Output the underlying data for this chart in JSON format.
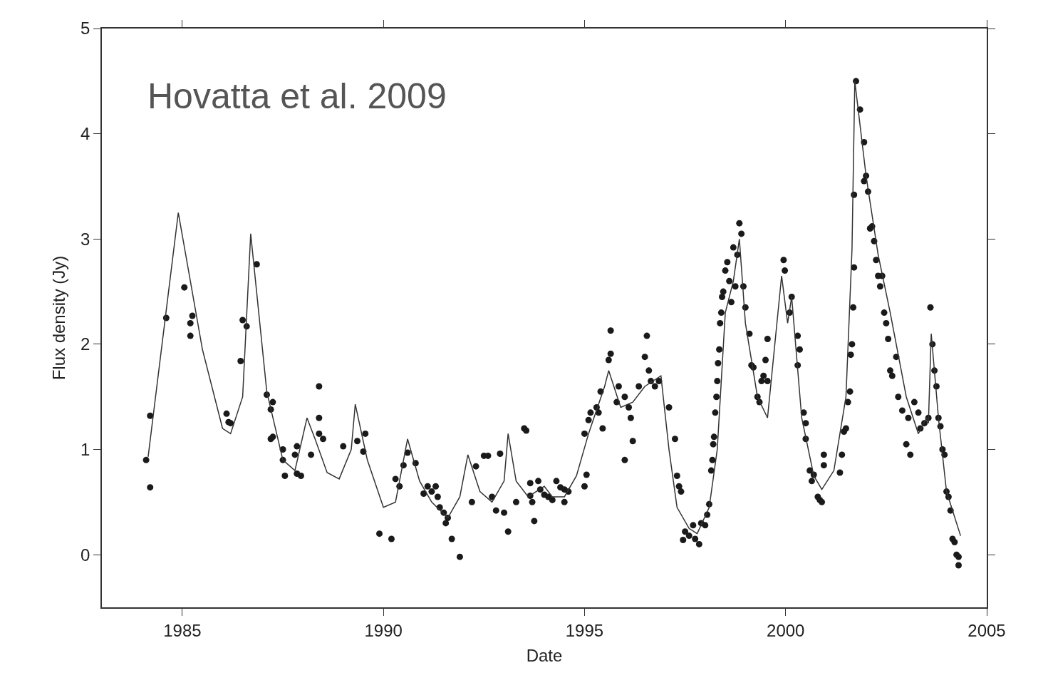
{
  "chart_data": {
    "type": "scatter",
    "xlabel": "Date",
    "ylabel": "Flux density (Jy)",
    "annotations": [
      "Hovatta et al. 2009"
    ],
    "xlim": [
      1983,
      2005
    ],
    "xticks": [
      1985,
      1990,
      1995,
      2000,
      2005
    ],
    "ylim": [
      -0.5,
      5
    ],
    "yticks": [
      0,
      1,
      2,
      3,
      4,
      5
    ],
    "marker": "circle",
    "series": [
      {
        "color": "#1a1a1a",
        "x": [
          1984.1,
          1984.2,
          1984.2,
          1984.6,
          1985.05,
          1985.2,
          1985.25,
          1985.2,
          1986.1,
          1986.15,
          1986.2,
          1986.45,
          1986.5,
          1986.6,
          1986.85,
          1987.1,
          1987.2,
          1987.25,
          1987.2,
          1987.25,
          1987.5,
          1987.5,
          1987.55,
          1987.8,
          1987.85,
          1987.85,
          1987.95,
          1988.2,
          1988.4,
          1988.4,
          1988.4,
          1988.5,
          1989.0,
          1989.35,
          1989.5,
          1989.55,
          1989.9,
          1990.2,
          1990.3,
          1990.4,
          1990.5,
          1990.6,
          1990.8,
          1991.0,
          1991.1,
          1991.2,
          1991.3,
          1991.35,
          1991.4,
          1991.5,
          1991.55,
          1991.6,
          1991.7,
          1991.9,
          1992.2,
          1992.3,
          1992.5,
          1992.6,
          1992.7,
          1992.8,
          1992.9,
          1993.0,
          1993.1,
          1993.3,
          1993.5,
          1993.55,
          1993.65,
          1993.65,
          1993.75,
          1993.7,
          1993.85,
          1993.9,
          1994.0,
          1994.1,
          1994.2,
          1994.3,
          1994.4,
          1994.5,
          1994.5,
          1994.6,
          1995.0,
          1995.05,
          1995.0,
          1995.1,
          1995.15,
          1995.3,
          1995.35,
          1995.4,
          1995.45,
          1995.6,
          1995.65,
          1995.65,
          1995.8,
          1995.85,
          1996.0,
          1996.0,
          1996.1,
          1996.15,
          1996.2,
          1996.35,
          1996.5,
          1996.55,
          1996.6,
          1996.65,
          1996.75,
          1996.85,
          1997.1,
          1997.25,
          1997.3,
          1997.35,
          1997.4,
          1997.45,
          1997.5,
          1997.6,
          1997.7,
          1997.75,
          1997.85,
          1997.9,
          1998.0,
          1998.05,
          1998.1,
          1998.15,
          1998.18,
          1998.2,
          1998.22,
          1998.25,
          1998.28,
          1998.3,
          1998.32,
          1998.35,
          1998.37,
          1998.4,
          1998.42,
          1998.45,
          1998.5,
          1998.55,
          1998.6,
          1998.65,
          1998.7,
          1998.75,
          1998.8,
          1998.85,
          1998.9,
          1998.95,
          1999.0,
          1999.1,
          1999.15,
          1999.2,
          1999.3,
          1999.35,
          1999.4,
          1999.45,
          1999.5,
          1999.55,
          1999.55,
          1999.95,
          1999.98,
          2000.1,
          2000.15,
          2000.3,
          2000.3,
          2000.35,
          2000.45,
          2000.5,
          2000.5,
          2000.6,
          2000.65,
          2000.7,
          2000.8,
          2000.85,
          2000.9,
          2000.95,
          2000.95,
          2001.35,
          2001.4,
          2001.45,
          2001.5,
          2001.55,
          2001.6,
          2001.62,
          2001.65,
          2001.68,
          2001.7,
          2001.7,
          2001.75,
          2001.85,
          2001.95,
          2001.95,
          2002.0,
          2002.05,
          2002.1,
          2002.15,
          2002.2,
          2002.25,
          2002.3,
          2002.35,
          2002.4,
          2002.45,
          2002.5,
          2002.55,
          2002.6,
          2002.65,
          2002.75,
          2002.8,
          2002.9,
          2003.0,
          2003.05,
          2003.1,
          2003.2,
          2003.3,
          2003.35,
          2003.45,
          2003.55,
          2003.6,
          2003.65,
          2003.7,
          2003.75,
          2003.8,
          2003.85,
          2003.9,
          2003.95,
          2004.0,
          2004.05,
          2004.1,
          2004.15,
          2004.2,
          2004.25,
          2004.3,
          2004.3
        ],
        "values": [
          0.9,
          1.32,
          0.64,
          2.25,
          2.54,
          2.2,
          2.27,
          2.08,
          1.34,
          1.26,
          1.25,
          1.84,
          2.23,
          2.17,
          2.76,
          1.52,
          1.38,
          1.45,
          1.1,
          1.12,
          1.0,
          0.9,
          0.75,
          0.95,
          1.03,
          0.77,
          0.75,
          0.95,
          1.6,
          1.3,
          1.15,
          1.1,
          1.03,
          1.08,
          0.98,
          1.15,
          0.2,
          0.15,
          0.72,
          0.65,
          0.85,
          0.97,
          0.87,
          0.58,
          0.65,
          0.6,
          0.65,
          0.55,
          0.45,
          0.4,
          0.3,
          0.35,
          0.15,
          -0.02,
          0.5,
          0.84,
          0.94,
          0.94,
          0.55,
          0.42,
          0.96,
          0.4,
          0.22,
          0.5,
          1.2,
          1.18,
          0.68,
          0.56,
          0.32,
          0.5,
          0.7,
          0.62,
          0.57,
          0.55,
          0.52,
          0.7,
          0.64,
          0.62,
          0.5,
          0.6,
          0.65,
          0.76,
          1.15,
          1.28,
          1.35,
          1.4,
          1.35,
          1.55,
          1.2,
          1.85,
          1.91,
          2.13,
          1.45,
          1.6,
          1.5,
          0.9,
          1.4,
          1.3,
          1.08,
          1.6,
          1.88,
          2.08,
          1.75,
          1.65,
          1.6,
          1.65,
          1.4,
          1.1,
          0.75,
          0.65,
          0.6,
          0.14,
          0.22,
          0.18,
          0.28,
          0.15,
          0.1,
          0.3,
          0.28,
          0.38,
          0.48,
          0.8,
          0.9,
          1.05,
          1.12,
          1.35,
          1.5,
          1.65,
          1.82,
          1.95,
          2.2,
          2.3,
          2.45,
          2.5,
          2.7,
          2.78,
          2.6,
          2.4,
          2.92,
          2.55,
          2.85,
          3.15,
          3.05,
          2.55,
          2.35,
          2.1,
          1.8,
          1.78,
          1.5,
          1.45,
          1.65,
          1.7,
          1.85,
          2.05,
          1.65,
          2.8,
          2.7,
          2.3,
          2.45,
          2.08,
          1.8,
          1.95,
          1.35,
          1.25,
          1.1,
          0.8,
          0.7,
          0.76,
          0.55,
          0.52,
          0.5,
          0.85,
          0.95,
          0.78,
          0.95,
          1.17,
          1.2,
          1.45,
          1.55,
          1.9,
          2.0,
          2.35,
          2.73,
          3.42,
          4.5,
          4.23,
          3.92,
          3.55,
          3.6,
          3.45,
          3.1,
          3.12,
          2.98,
          2.8,
          2.65,
          2.55,
          2.65,
          2.3,
          2.2,
          2.05,
          1.75,
          1.7,
          1.88,
          1.5,
          1.37,
          1.05,
          1.3,
          0.95,
          1.45,
          1.35,
          1.2,
          1.25,
          1.3,
          2.35,
          2.0,
          1.75,
          1.6,
          1.3,
          1.22,
          1.0,
          0.95,
          0.6,
          0.55,
          0.42,
          0.15,
          0.12,
          0.0,
          -0.02,
          -0.1
        ]
      },
      {
        "type": "line",
        "color": "#333333",
        "line_style": "solid",
        "marker": "none",
        "x": [
          1984.15,
          1984.9,
          1985.5,
          1986.0,
          1986.2,
          1986.5,
          1986.7,
          1987.1,
          1987.5,
          1987.8,
          1988.1,
          1988.3,
          1988.6,
          1988.9,
          1989.2,
          1989.3,
          1989.6,
          1990.0,
          1990.3,
          1990.6,
          1990.9,
          1991.2,
          1991.6,
          1991.9,
          1992.1,
          1992.4,
          1992.7,
          1993.0,
          1993.1,
          1993.3,
          1993.6,
          1994.0,
          1994.2,
          1994.5,
          1994.8,
          1995.1,
          1995.5,
          1995.6,
          1995.9,
          1996.2,
          1996.5,
          1996.9,
          1997.1,
          1997.3,
          1997.6,
          1997.8,
          1998.1,
          1998.3,
          1998.5,
          1998.7,
          1998.85,
          1999.0,
          1999.3,
          1999.55,
          1999.9,
          2000.05,
          2000.15,
          2000.4,
          2000.7,
          2000.9,
          2001.2,
          2001.5,
          2001.65,
          2001.72,
          2002.0,
          2002.3,
          2002.6,
          2003.0,
          2003.3,
          2003.5,
          2003.55,
          2003.62,
          2003.8,
          2004.0,
          2004.35
        ],
        "values": [
          0.93,
          3.25,
          1.95,
          1.2,
          1.15,
          1.5,
          3.05,
          1.55,
          0.9,
          0.8,
          1.3,
          1.1,
          0.78,
          0.72,
          1.0,
          1.43,
          0.9,
          0.45,
          0.5,
          1.1,
          0.7,
          0.5,
          0.35,
          0.55,
          0.95,
          0.6,
          0.5,
          0.7,
          1.15,
          0.7,
          0.55,
          0.65,
          0.55,
          0.55,
          0.75,
          1.15,
          1.6,
          1.75,
          1.4,
          1.45,
          1.6,
          1.7,
          1.0,
          0.45,
          0.25,
          0.2,
          0.45,
          1.0,
          2.3,
          2.6,
          3.0,
          2.2,
          1.5,
          1.3,
          2.65,
          2.2,
          2.45,
          1.3,
          0.75,
          0.62,
          0.8,
          1.5,
          2.9,
          4.5,
          3.6,
          2.85,
          2.3,
          1.5,
          1.15,
          1.3,
          1.25,
          2.1,
          1.3,
          0.6,
          0.18
        ]
      }
    ]
  }
}
